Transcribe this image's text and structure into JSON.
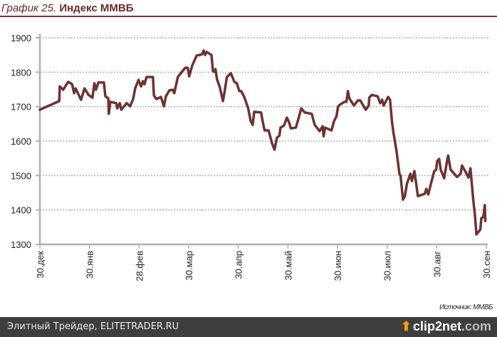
{
  "header": {
    "number": "График 25.",
    "name": "Индекс ММВБ"
  },
  "source": "Источник: ММВБ",
  "footer": {
    "credit": "Элитный Трейдер, ELITETRADER.RU",
    "logo": "clip2net.com",
    "logo_main": "clip2net",
    "logo_tld": ".com"
  },
  "colors": {
    "line": "#6e3232",
    "title": "#6b2a2a",
    "grid": "#b0b0b0",
    "footer_bg": "#3e3e3e"
  },
  "chart_data": {
    "type": "line",
    "title": "Индекс ММВБ",
    "xlabel": "",
    "ylabel": "",
    "ylim": [
      1300,
      1900
    ],
    "yticks": [
      1300,
      1400,
      1500,
      1600,
      1700,
      1800,
      1900
    ],
    "xlim": [
      0,
      9
    ],
    "xtick_labels": [
      "30.дек",
      "30.янв",
      "28.фев",
      "30.мар",
      "30.апр",
      "30.май",
      "30.июн",
      "30.июл",
      "30.авг",
      "30.сен"
    ],
    "grid": "horizontal dotted",
    "series": [
      {
        "name": "Индекс ММВБ",
        "x": [
          0,
          0.39,
          0.4,
          0.47,
          0.57,
          0.65,
          0.69,
          0.72,
          0.83,
          0.9,
          0.98,
          1.06,
          1.1,
          1.13,
          1.18,
          1.29,
          1.32,
          1.38,
          1.39,
          1.42,
          1.54,
          1.56,
          1.61,
          1.64,
          1.75,
          1.82,
          1.88,
          1.92,
          1.99,
          2.04,
          2.08,
          2.11,
          2.15,
          2.28,
          2.3,
          2.35,
          2.44,
          2.5,
          2.54,
          2.61,
          2.68,
          2.71,
          2.78,
          2.93,
          2.98,
          3.01,
          3.07,
          3.16,
          3.27,
          3.3,
          3.33,
          3.36,
          3.46,
          3.49,
          3.52,
          3.54,
          3.57,
          3.63,
          3.69,
          3.73,
          3.77,
          3.85,
          3.92,
          3.97,
          4.02,
          4.06,
          4.12,
          4.2,
          4.25,
          4.29,
          4.32,
          4.46,
          4.49,
          4.53,
          4.61,
          4.68,
          4.73,
          4.78,
          4.83,
          4.85,
          4.92,
          4.98,
          5.02,
          5.06,
          5.16,
          5.21,
          5.27,
          5.34,
          5.48,
          5.54,
          5.64,
          5.7,
          5.72,
          5.75,
          5.88,
          5.93,
          5.98,
          6.01,
          6.04,
          6.14,
          6.18,
          6.21,
          6.24,
          6.33,
          6.41,
          6.46,
          6.57,
          6.63,
          6.64,
          6.69,
          6.81,
          6.86,
          6.9,
          6.93,
          7.02,
          7.06,
          7.1,
          7.13,
          7.19,
          7.25,
          7.27,
          7.32,
          7.36,
          7.4,
          7.47,
          7.5,
          7.55,
          7.58,
          7.62,
          7.76,
          7.79,
          7.83,
          7.89,
          7.95,
          7.99,
          8.01,
          8.05,
          8.08,
          8.15,
          8.21,
          8.23,
          8.28,
          8.41,
          8.48,
          8.51,
          8.58,
          8.64,
          8.68,
          8.74,
          8.77,
          8.8,
          8.88,
          8.9,
          8.94,
          8.95,
          8.97,
          8.98
        ],
        "values": [
          1691,
          1716,
          1759,
          1749,
          1772,
          1765,
          1739,
          1753,
          1720,
          1753,
          1734,
          1726,
          1768,
          1749,
          1770,
          1770,
          1730,
          1724,
          1679,
          1714,
          1710,
          1695,
          1710,
          1691,
          1710,
          1701,
          1722,
          1753,
          1778,
          1759,
          1774,
          1765,
          1786,
          1786,
          1732,
          1722,
          1728,
          1701,
          1730,
          1747,
          1749,
          1739,
          1786,
          1813,
          1813,
          1788,
          1819,
          1848,
          1852,
          1863,
          1850,
          1859,
          1850,
          1803,
          1801,
          1809,
          1780,
          1755,
          1716,
          1749,
          1786,
          1797,
          1772,
          1768,
          1745,
          1745,
          1728,
          1695,
          1658,
          1647,
          1685,
          1683,
          1658,
          1631,
          1631,
          1594,
          1575,
          1610,
          1616,
          1639,
          1645,
          1668,
          1656,
          1637,
          1639,
          1664,
          1695,
          1683,
          1679,
          1647,
          1629,
          1643,
          1614,
          1639,
          1631,
          1658,
          1672,
          1699,
          1705,
          1714,
          1714,
          1745,
          1724,
          1703,
          1718,
          1718,
          1691,
          1703,
          1726,
          1734,
          1730,
          1710,
          1720,
          1703,
          1728,
          1720,
          1654,
          1623,
          1571,
          1503,
          1500,
          1430,
          1440,
          1476,
          1505,
          1484,
          1513,
          1482,
          1440,
          1447,
          1461,
          1445,
          1480,
          1513,
          1517,
          1542,
          1548,
          1517,
          1492,
          1544,
          1558,
          1517,
          1496,
          1505,
          1529,
          1511,
          1494,
          1521,
          1424,
          1385,
          1329,
          1343,
          1376,
          1380,
          1391,
          1414,
          1368
        ]
      }
    ]
  }
}
